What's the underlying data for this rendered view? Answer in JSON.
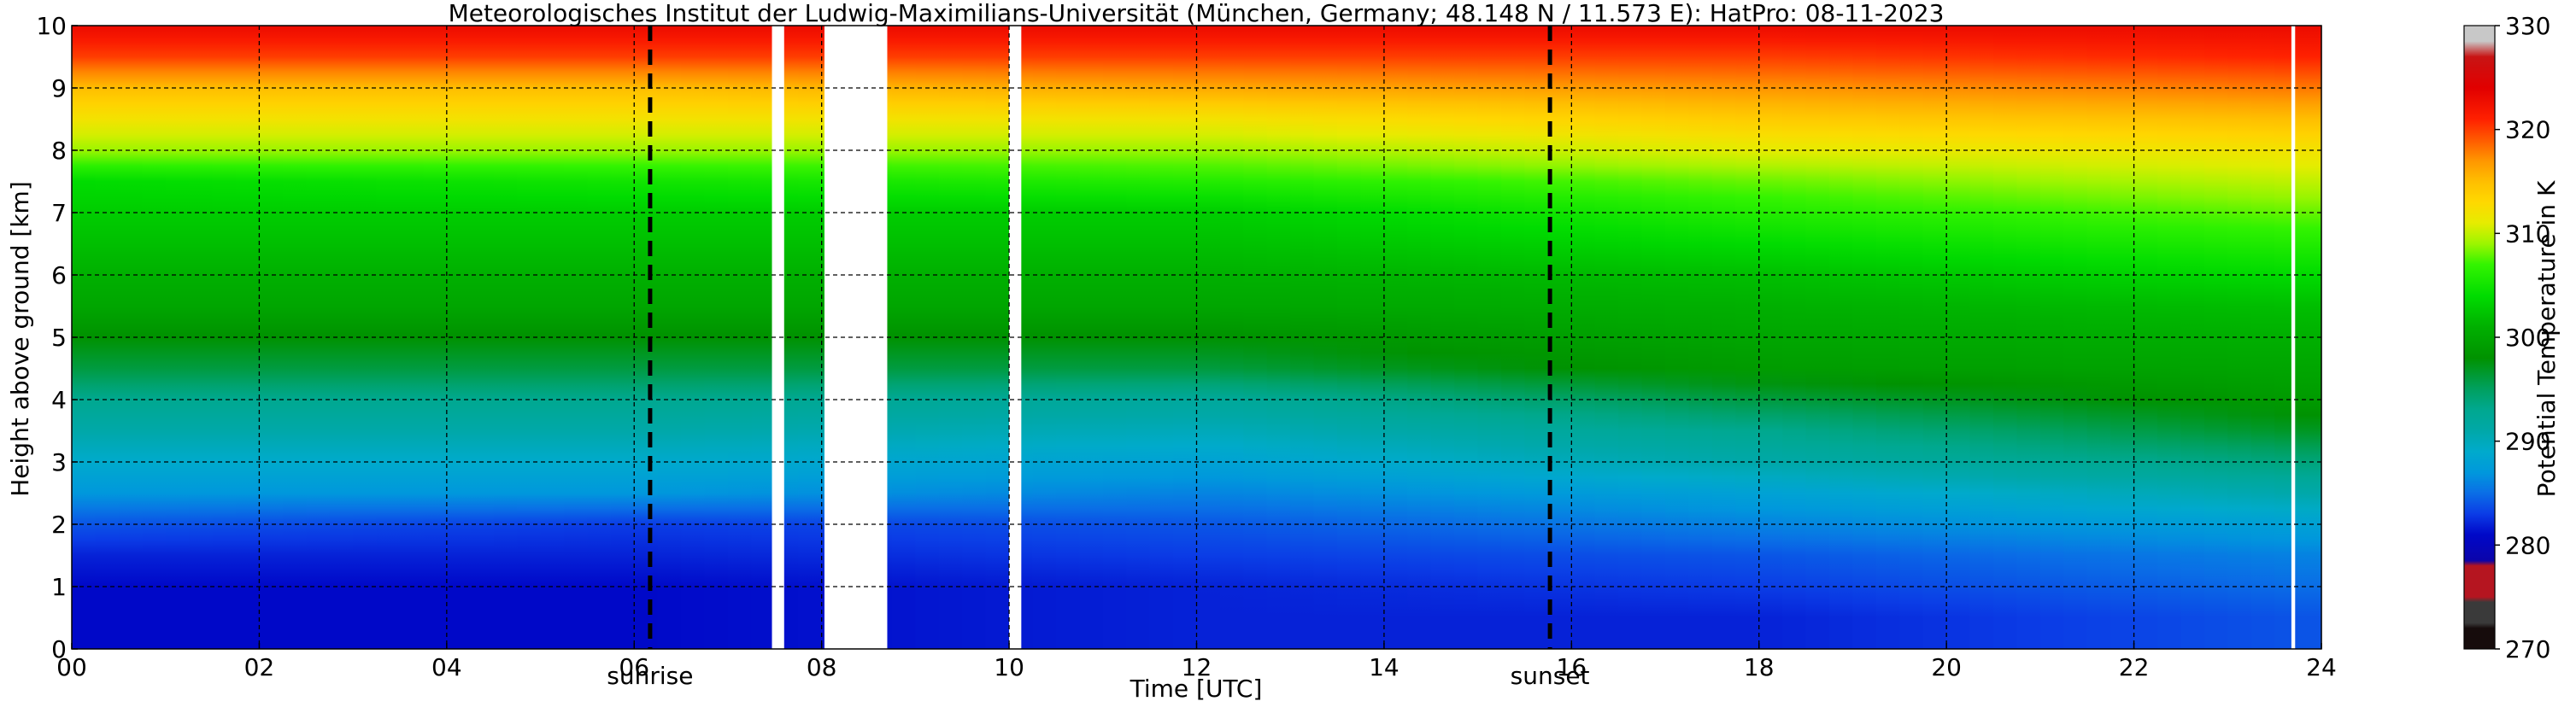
{
  "chart_data": {
    "type": "heatmap",
    "title": "Meteorologisches Institut der Ludwig-Maximilians-Universität (München, Germany; 48.148 N / 11.573 E):    HatPro: 08-11-2023",
    "xlabel": "Time [UTC]",
    "ylabel": "Height above ground [km]",
    "colorbar_label": "Potential Temperature in K",
    "xlim": [
      0,
      24
    ],
    "ylim": [
      0,
      10
    ],
    "clim": [
      270,
      330
    ],
    "x_ticks": [
      0,
      2,
      4,
      6,
      8,
      10,
      12,
      14,
      16,
      18,
      20,
      22,
      24
    ],
    "x_tick_labels": [
      "00",
      "02",
      "04",
      "06",
      "08",
      "10",
      "12",
      "14",
      "16",
      "18",
      "20",
      "22",
      "24"
    ],
    "y_ticks": [
      0,
      1,
      2,
      3,
      4,
      5,
      6,
      7,
      8,
      9,
      10
    ],
    "y_tick_labels": [
      "0",
      "1",
      "2",
      "3",
      "4",
      "5",
      "6",
      "7",
      "8",
      "9",
      "10"
    ],
    "colorbar_ticks": [
      270,
      280,
      290,
      300,
      310,
      320,
      330
    ],
    "colorbar_tick_labels": [
      "270",
      "280",
      "290",
      "300",
      "310",
      "320",
      "330"
    ],
    "grid": true,
    "markers": [
      {
        "time": 6.17,
        "label": "sunrise"
      },
      {
        "time": 15.77,
        "label": "sunset"
      }
    ],
    "data_gaps": [
      [
        7.47,
        7.6
      ],
      [
        8.03,
        8.7
      ],
      [
        10.0,
        10.13
      ],
      [
        23.68,
        23.72
      ]
    ],
    "theta_profiles": [
      {
        "time": 0,
        "heights": [
          0,
          0.5,
          1,
          1.5,
          2,
          2.5,
          3,
          3.5,
          4,
          4.5,
          5,
          5.5,
          6,
          6.5,
          7,
          7.5,
          8,
          8.5,
          9,
          9.5,
          10
        ],
        "theta": [
          281,
          281,
          281,
          282,
          284,
          287,
          289,
          291,
          293,
          296,
          298,
          300,
          301,
          302,
          303,
          304,
          309,
          312,
          315,
          320,
          323
        ]
      },
      {
        "time": 6,
        "heights": [
          0,
          0.5,
          1,
          1.5,
          2,
          2.5,
          3,
          3.5,
          4,
          4.5,
          5,
          5.5,
          6,
          6.5,
          7,
          7.5,
          8,
          8.5,
          9,
          9.5,
          10
        ],
        "theta": [
          281,
          281,
          281,
          282,
          283,
          287,
          289,
          291,
          293,
          296,
          298,
          300,
          301,
          302,
          303,
          305,
          309,
          312,
          315,
          320,
          323
        ]
      },
      {
        "time": 12,
        "heights": [
          0,
          0.5,
          1,
          1.5,
          2,
          2.5,
          3,
          3.5,
          4,
          4.5,
          5,
          5.5,
          6,
          6.5,
          7,
          7.5,
          8,
          8.5,
          9,
          9.5,
          10
        ],
        "theta": [
          282,
          282,
          282,
          283,
          284,
          286,
          288,
          290,
          292,
          296,
          298,
          300,
          301,
          302,
          303,
          306,
          309,
          312,
          316,
          320,
          323
        ]
      },
      {
        "time": 18,
        "heights": [
          0,
          0.5,
          1,
          1.5,
          2,
          2.5,
          3,
          3.5,
          4,
          4.5,
          5,
          5.5,
          6,
          6.5,
          7,
          7.5,
          8,
          8.5,
          9,
          9.5,
          10
        ],
        "theta": [
          282,
          282,
          283,
          284,
          286,
          288,
          291,
          293,
          296,
          299,
          300,
          301,
          302,
          304,
          306,
          308,
          311,
          314,
          317,
          320,
          323
        ]
      },
      {
        "time": 24,
        "heights": [
          0,
          0.5,
          1,
          1.5,
          2,
          2.5,
          3,
          3.5,
          4,
          4.5,
          5,
          5.5,
          6,
          6.5,
          7,
          7.5,
          8,
          8.5,
          9,
          9.5,
          10
        ],
        "theta": [
          284,
          284,
          285,
          286,
          288,
          291,
          294,
          297,
          299,
          300,
          301,
          302,
          304,
          306,
          308,
          310,
          312,
          315,
          318,
          321,
          323
        ]
      }
    ],
    "colormap": [
      [
        270,
        "#160c0c"
      ],
      [
        272,
        "#160c0c"
      ],
      [
        272.5,
        "#3a3a3a"
      ],
      [
        274.5,
        "#3a3a3a"
      ],
      [
        275,
        "#b51520"
      ],
      [
        278,
        "#b51520"
      ],
      [
        278.5,
        "#0b04aa"
      ],
      [
        281,
        "#0008c8"
      ],
      [
        283,
        "#0b3ce6"
      ],
      [
        285,
        "#0a6ee6"
      ],
      [
        287,
        "#0098dc"
      ],
      [
        289,
        "#00aacc"
      ],
      [
        291,
        "#00a8a8"
      ],
      [
        293,
        "#00a890"
      ],
      [
        295,
        "#00a060"
      ],
      [
        298,
        "#009200"
      ],
      [
        301,
        "#00b000"
      ],
      [
        304,
        "#00dc00"
      ],
      [
        307,
        "#33f400"
      ],
      [
        309,
        "#9cf500"
      ],
      [
        311,
        "#e6ec00"
      ],
      [
        313,
        "#ffd800"
      ],
      [
        315,
        "#ffbe00"
      ],
      [
        317,
        "#ff9600"
      ],
      [
        319,
        "#ff5a00"
      ],
      [
        321,
        "#ff2000"
      ],
      [
        324,
        "#e10000"
      ],
      [
        327,
        "#c81414"
      ],
      [
        328.5,
        "#c8c8c8"
      ],
      [
        330,
        "#c8c8c8"
      ]
    ]
  }
}
